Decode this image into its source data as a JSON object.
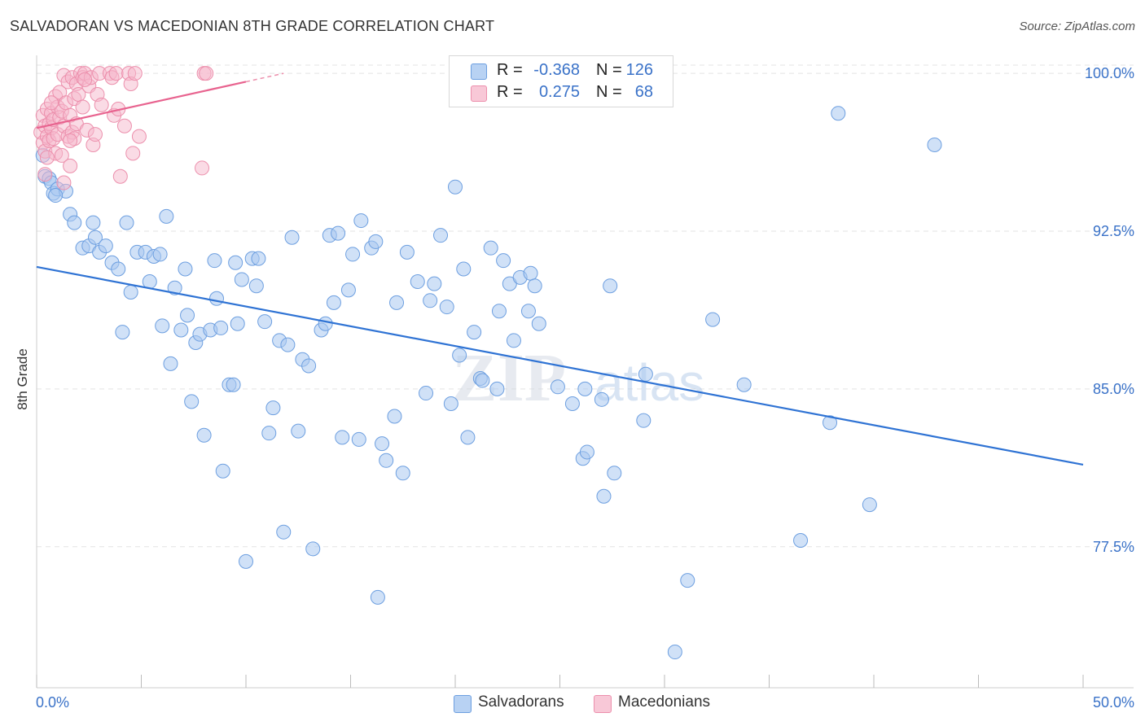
{
  "title": "SALVADORAN VS MACEDONIAN 8TH GRADE CORRELATION CHART",
  "source": "Source: ZipAtlas.com",
  "watermark": "ZIPatlas",
  "legend": {
    "rows": [
      {
        "r_label": "R =",
        "r_value": "-0.368",
        "n_label": "N =",
        "n_value": "126"
      },
      {
        "r_label": "R =",
        "r_value": "0.275",
        "n_label": "N =",
        "n_value": "68"
      }
    ]
  },
  "colors": {
    "blue_fill": "#aac8f0",
    "blue_stroke": "#6d9fe0",
    "blue_line": "#2f73d4",
    "pink_fill": "#f5b8cb",
    "pink_stroke": "#ec8fac",
    "pink_line": "#e8638f",
    "axis_text": "#3a72c8",
    "grid": "#e3e3e3"
  },
  "chart_data": {
    "type": "scatter",
    "title": "SALVADORAN VS MACEDONIAN 8TH GRADE CORRELATION CHART",
    "xlabel": "",
    "ylabel": "8th Grade",
    "xlim": [
      0,
      50
    ],
    "ylim": [
      70.8,
      100.7
    ],
    "x_tick_labels": [
      "0.0%",
      "50.0%"
    ],
    "y_ticks": [
      77.5,
      85.0,
      92.5,
      100.0
    ],
    "y_tick_labels": [
      "77.5%",
      "85.0%",
      "92.5%",
      "100.0%"
    ],
    "grid": true,
    "legend_position": "bottom",
    "series": [
      {
        "name": "Salvadorans",
        "color": "#aac8f0",
        "trend": {
          "x0": 0,
          "y0": 90.8,
          "x1": 50,
          "y1": 81.4
        },
        "points": [
          [
            0.3,
            96.1
          ],
          [
            0.4,
            95.1
          ],
          [
            0.6,
            95.0
          ],
          [
            0.7,
            94.8
          ],
          [
            0.8,
            94.3
          ],
          [
            1.0,
            94.5
          ],
          [
            1.4,
            94.4
          ],
          [
            1.6,
            93.3
          ],
          [
            1.8,
            92.9
          ],
          [
            2.2,
            91.7
          ],
          [
            2.5,
            91.8
          ],
          [
            2.7,
            92.9
          ],
          [
            2.8,
            92.2
          ],
          [
            3.0,
            91.5
          ],
          [
            3.3,
            91.8
          ],
          [
            3.6,
            91.0
          ],
          [
            3.9,
            90.7
          ],
          [
            4.1,
            87.7
          ],
          [
            4.3,
            92.9
          ],
          [
            4.5,
            89.6
          ],
          [
            4.8,
            91.5
          ],
          [
            5.2,
            91.5
          ],
          [
            5.4,
            90.1
          ],
          [
            5.6,
            91.3
          ],
          [
            5.9,
            91.4
          ],
          [
            6.0,
            88.0
          ],
          [
            6.2,
            93.2
          ],
          [
            6.4,
            86.2
          ],
          [
            6.6,
            89.8
          ],
          [
            6.9,
            87.8
          ],
          [
            7.1,
            90.7
          ],
          [
            7.2,
            88.5
          ],
          [
            7.4,
            84.4
          ],
          [
            7.6,
            87.2
          ],
          [
            7.8,
            87.6
          ],
          [
            8.0,
            82.8
          ],
          [
            8.3,
            87.8
          ],
          [
            8.5,
            91.1
          ],
          [
            8.6,
            89.3
          ],
          [
            8.8,
            87.9
          ],
          [
            8.9,
            81.1
          ],
          [
            9.2,
            85.2
          ],
          [
            9.4,
            85.2
          ],
          [
            9.6,
            88.1
          ],
          [
            9.8,
            90.2
          ],
          [
            10.0,
            76.8
          ],
          [
            10.3,
            91.2
          ],
          [
            10.5,
            89.9
          ],
          [
            10.6,
            91.2
          ],
          [
            10.9,
            88.2
          ],
          [
            11.1,
            82.9
          ],
          [
            11.3,
            84.1
          ],
          [
            11.6,
            87.3
          ],
          [
            11.8,
            78.2
          ],
          [
            12.0,
            87.1
          ],
          [
            12.2,
            92.2
          ],
          [
            12.5,
            83.0
          ],
          [
            12.7,
            86.4
          ],
          [
            13.0,
            86.1
          ],
          [
            13.2,
            77.4
          ],
          [
            13.6,
            87.8
          ],
          [
            13.8,
            88.1
          ],
          [
            14.0,
            92.3
          ],
          [
            14.2,
            89.1
          ],
          [
            14.4,
            92.4
          ],
          [
            14.6,
            82.7
          ],
          [
            14.9,
            89.7
          ],
          [
            15.1,
            91.4
          ],
          [
            15.4,
            82.6
          ],
          [
            15.5,
            93.0
          ],
          [
            16.0,
            91.7
          ],
          [
            16.2,
            92.0
          ],
          [
            16.3,
            75.1
          ],
          [
            16.5,
            82.4
          ],
          [
            16.7,
            81.6
          ],
          [
            17.1,
            83.7
          ],
          [
            17.2,
            89.1
          ],
          [
            17.5,
            81.0
          ],
          [
            17.7,
            91.5
          ],
          [
            18.2,
            90.1
          ],
          [
            18.6,
            84.8
          ],
          [
            18.8,
            89.2
          ],
          [
            19.0,
            90.0
          ],
          [
            19.3,
            92.3
          ],
          [
            19.6,
            88.9
          ],
          [
            19.8,
            84.3
          ],
          [
            20.0,
            94.6
          ],
          [
            20.2,
            86.6
          ],
          [
            20.4,
            90.7
          ],
          [
            20.6,
            82.7
          ],
          [
            20.9,
            87.7
          ],
          [
            21.2,
            85.5
          ],
          [
            21.3,
            85.4
          ],
          [
            21.7,
            91.7
          ],
          [
            22.0,
            85.0
          ],
          [
            22.1,
            88.7
          ],
          [
            22.3,
            91.1
          ],
          [
            22.6,
            90.0
          ],
          [
            22.8,
            87.3
          ],
          [
            23.1,
            90.3
          ],
          [
            23.5,
            88.7
          ],
          [
            23.6,
            90.5
          ],
          [
            23.8,
            89.9
          ],
          [
            24.0,
            88.1
          ],
          [
            24.9,
            85.1
          ],
          [
            25.6,
            84.3
          ],
          [
            26.1,
            81.7
          ],
          [
            26.2,
            85.0
          ],
          [
            26.3,
            82.0
          ],
          [
            27.0,
            84.5
          ],
          [
            27.1,
            79.9
          ],
          [
            27.4,
            89.9
          ],
          [
            27.6,
            81.0
          ],
          [
            29.0,
            83.5
          ],
          [
            29.1,
            85.7
          ],
          [
            30.5,
            72.5
          ],
          [
            31.1,
            75.9
          ],
          [
            32.3,
            88.3
          ],
          [
            33.8,
            85.2
          ],
          [
            36.5,
            77.8
          ],
          [
            37.9,
            83.4
          ],
          [
            38.3,
            98.1
          ],
          [
            39.8,
            79.5
          ],
          [
            42.9,
            96.6
          ],
          [
            0.9,
            94.2
          ],
          [
            9.5,
            91.0
          ]
        ]
      },
      {
        "name": "Macedonians",
        "color": "#f5b8cb",
        "trend": {
          "x0": 0,
          "y0": 97.4,
          "x1": 10,
          "y1": 99.6
        },
        "trend_extension": {
          "x0": 10,
          "y0": 99.6,
          "x1": 11.8,
          "y1": 100.0
        },
        "points": [
          [
            0.2,
            97.2
          ],
          [
            0.3,
            96.7
          ],
          [
            0.3,
            98.0
          ],
          [
            0.4,
            97.5
          ],
          [
            0.4,
            96.3
          ],
          [
            0.5,
            97.0
          ],
          [
            0.5,
            98.3
          ],
          [
            0.6,
            97.6
          ],
          [
            0.6,
            96.8
          ],
          [
            0.7,
            97.4
          ],
          [
            0.7,
            98.1
          ],
          [
            0.8,
            96.9
          ],
          [
            0.8,
            97.8
          ],
          [
            0.9,
            96.2
          ],
          [
            0.9,
            98.9
          ],
          [
            1.0,
            97.1
          ],
          [
            1.0,
            98.4
          ],
          [
            1.1,
            99.1
          ],
          [
            1.1,
            97.9
          ],
          [
            1.2,
            96.1
          ],
          [
            1.2,
            98.2
          ],
          [
            1.3,
            99.9
          ],
          [
            1.3,
            97.5
          ],
          [
            1.4,
            98.6
          ],
          [
            1.5,
            97.0
          ],
          [
            1.5,
            99.6
          ],
          [
            1.6,
            98.0
          ],
          [
            1.6,
            95.6
          ],
          [
            1.7,
            97.2
          ],
          [
            1.7,
            99.8
          ],
          [
            1.8,
            96.9
          ],
          [
            1.8,
            98.8
          ],
          [
            1.9,
            99.5
          ],
          [
            1.9,
            97.6
          ],
          [
            2.0,
            99.0
          ],
          [
            2.1,
            100.0
          ],
          [
            2.2,
            98.4
          ],
          [
            2.2,
            99.8
          ],
          [
            2.3,
            100.0
          ],
          [
            2.4,
            97.3
          ],
          [
            2.5,
            99.4
          ],
          [
            2.6,
            99.8
          ],
          [
            2.7,
            96.6
          ],
          [
            2.8,
            97.1
          ],
          [
            2.9,
            99.0
          ],
          [
            3.0,
            100.0
          ],
          [
            3.1,
            98.5
          ],
          [
            3.5,
            100.0
          ],
          [
            3.6,
            99.8
          ],
          [
            3.7,
            98.0
          ],
          [
            3.8,
            100.0
          ],
          [
            3.9,
            98.3
          ],
          [
            4.0,
            95.1
          ],
          [
            4.2,
            97.5
          ],
          [
            4.4,
            100.0
          ],
          [
            4.5,
            99.5
          ],
          [
            4.6,
            96.2
          ],
          [
            4.7,
            100.0
          ],
          [
            4.9,
            97.0
          ],
          [
            7.9,
            95.5
          ],
          [
            8.0,
            100.0
          ],
          [
            8.1,
            100.0
          ],
          [
            0.4,
            95.2
          ],
          [
            0.5,
            96.0
          ],
          [
            1.3,
            94.8
          ],
          [
            1.6,
            96.8
          ],
          [
            0.7,
            98.6
          ],
          [
            2.3,
            99.7
          ]
        ]
      }
    ]
  }
}
